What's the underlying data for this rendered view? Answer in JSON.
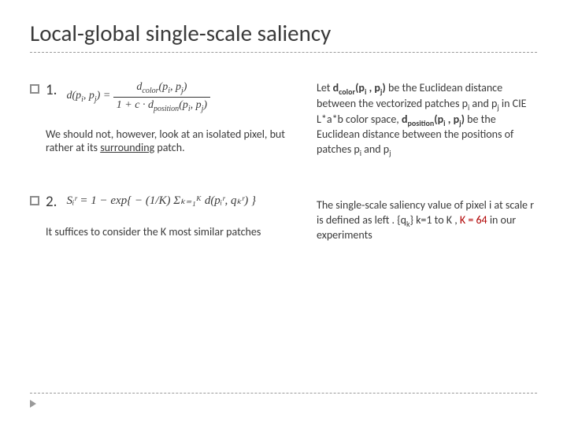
{
  "title": "Local-global single-scale saliency",
  "colors": {
    "text": "#3a3a3a",
    "dash": "#9a9a9a",
    "accent_red": "#b00000",
    "bg": "#ffffff"
  },
  "items": [
    {
      "num": "1.",
      "formula_lhs": "d(p",
      "formula_lhs_sub1": "i",
      "formula_lhs_mid": ", p",
      "formula_lhs_sub2": "j",
      "formula_lhs_end": ") =",
      "frac_top_a": "d",
      "frac_top_sub_a": "color",
      "frac_top_b": "(p",
      "frac_top_sub_b": "i",
      "frac_top_c": ", p",
      "frac_top_sub_c": "j",
      "frac_top_d": ")",
      "frac_bot_a": "1 + c · d",
      "frac_bot_sub_a": "position",
      "frac_bot_b": "(p",
      "frac_bot_sub_b": "i",
      "frac_bot_c": ", p",
      "frac_bot_sub_c": "j",
      "frac_bot_d": ")",
      "note_pre": "We should not, however, look at an isolated pixel, but rather at its ",
      "note_u": "surrounding",
      "note_post": " patch."
    },
    {
      "num": "2.",
      "formula_text": "Sᵢʳ = 1 − exp{ − (1/K) Σₖ₌₁ᴷ d(pᵢʳ, qₖʳ) }",
      "note": "It suffices to consider the K most similar patches"
    }
  ],
  "right": [
    {
      "pre": "Let ",
      "t1": "d",
      "t1sub": "color",
      "t1args": "(p",
      "t1s1": "i",
      "t1mid": " , p",
      "t1s2": "j",
      "t1end": ")",
      "mid1": " be the Euclidean distance between the vectorized patches p",
      "mid1s1": "i",
      "mid1a": " and p",
      "mid1s2": "j",
      "mid1b": " in CIE L*a*b color space, ",
      "t2": "d",
      "t2sub": "position",
      "t2args": "(p",
      "t2s1": "i",
      "t2mid": " , p",
      "t2s2": "j",
      "t2end": ")",
      "mid2": " be the Euclidean distance between the positions of patches p",
      "mid2s1": "i",
      "mid2a": " and p",
      "mid2s2": "j"
    },
    {
      "l1": "The single-scale saliency value of pixel i at scale r is defined as left . {q",
      "l1sub": "k",
      "l2": "} k=1 to K , ",
      "emph": "K = 64",
      "l3": " in our experiments"
    }
  ]
}
